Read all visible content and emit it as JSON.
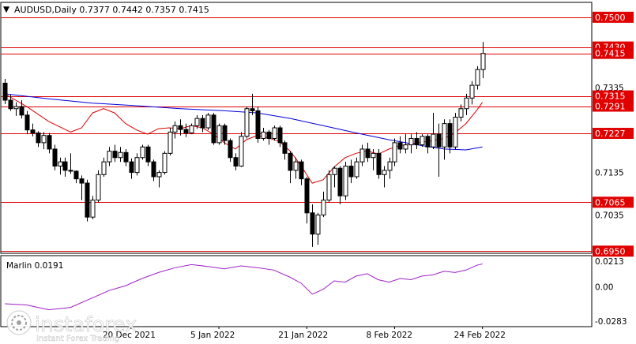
{
  "header": {
    "marker": "▼",
    "text": "AUDUSD,Daily  0.7377 0.7442 0.7357 0.7415"
  },
  "colors": {
    "level": "#e00000",
    "bull": "#ffffff",
    "bear": "#000000",
    "ma_slow": "#0000dd",
    "ma_fast": "#dd0000",
    "oscillator": "#a020c8",
    "grid_border": "#000000"
  },
  "chart_data": {
    "type": "candlestick",
    "symbol": "AUDUSD",
    "timeframe": "Daily",
    "ohlc_last": {
      "open": 0.7377,
      "high": 0.7442,
      "low": 0.7357,
      "close": 0.7415
    },
    "price_axis_labels": [
      "0.7500",
      "0.7430",
      "0.7415",
      "0.7335",
      "0.7315",
      "0.7291",
      "0.7227",
      "0.7135",
      "0.7065",
      "0.7035",
      "0.6950"
    ],
    "levels": [
      0.75,
      0.743,
      0.7415,
      0.7315,
      0.7291,
      0.7227,
      0.7065,
      0.695
    ],
    "ylim": [
      0.6945,
      0.7535
    ],
    "x_tick_labels": [
      "20 Dec 2021",
      "5 Jan 2022",
      "21 Jan 2022",
      "8 Feb 2022",
      "24 Feb 2022"
    ],
    "x_tick_index": [
      23,
      39,
      55,
      71,
      87
    ],
    "candles": [
      [
        0.7345,
        0.7355,
        0.7296,
        0.7305
      ],
      [
        0.7305,
        0.7318,
        0.728,
        0.7285
      ],
      [
        0.7285,
        0.73,
        0.7268,
        0.729
      ],
      [
        0.729,
        0.7305,
        0.7262,
        0.727
      ],
      [
        0.727,
        0.728,
        0.7225,
        0.7235
      ],
      [
        0.7235,
        0.725,
        0.722,
        0.7228
      ],
      [
        0.7228,
        0.7232,
        0.7195,
        0.7205
      ],
      [
        0.7205,
        0.723,
        0.719,
        0.7222
      ],
      [
        0.7222,
        0.7228,
        0.718,
        0.719
      ],
      [
        0.719,
        0.72,
        0.714,
        0.715
      ],
      [
        0.715,
        0.717,
        0.713,
        0.716
      ],
      [
        0.716,
        0.717,
        0.7125,
        0.714
      ],
      [
        0.714,
        0.718,
        0.7132,
        0.7138
      ],
      [
        0.7138,
        0.714,
        0.711,
        0.712
      ],
      [
        0.712,
        0.7128,
        0.707,
        0.711
      ],
      [
        0.711,
        0.7118,
        0.702,
        0.703
      ],
      [
        0.703,
        0.708,
        0.7025,
        0.707
      ],
      [
        0.707,
        0.714,
        0.7065,
        0.713
      ],
      [
        0.713,
        0.717,
        0.7125,
        0.716
      ],
      [
        0.716,
        0.7195,
        0.715,
        0.7185
      ],
      [
        0.7185,
        0.72,
        0.716,
        0.717
      ],
      [
        0.717,
        0.7195,
        0.716,
        0.7182
      ],
      [
        0.7182,
        0.719,
        0.715,
        0.716
      ],
      [
        0.716,
        0.7168,
        0.712,
        0.7135
      ],
      [
        0.7135,
        0.718,
        0.7128,
        0.717
      ],
      [
        0.717,
        0.72,
        0.7165,
        0.7195
      ],
      [
        0.7195,
        0.72,
        0.715,
        0.716
      ],
      [
        0.716,
        0.7165,
        0.7115,
        0.7125
      ],
      [
        0.7125,
        0.714,
        0.71,
        0.7135
      ],
      [
        0.7135,
        0.7185,
        0.713,
        0.718
      ],
      [
        0.718,
        0.724,
        0.7175,
        0.723
      ],
      [
        0.723,
        0.7255,
        0.7215,
        0.7245
      ],
      [
        0.7245,
        0.726,
        0.7222,
        0.7236
      ],
      [
        0.7236,
        0.725,
        0.7218,
        0.7228
      ],
      [
        0.7228,
        0.725,
        0.7225,
        0.7245
      ],
      [
        0.7245,
        0.727,
        0.7238,
        0.7262
      ],
      [
        0.7262,
        0.727,
        0.723,
        0.724
      ],
      [
        0.724,
        0.7275,
        0.7235,
        0.727
      ],
      [
        0.727,
        0.7275,
        0.72,
        0.7205
      ],
      [
        0.7205,
        0.725,
        0.72,
        0.7245
      ],
      [
        0.7245,
        0.725,
        0.72,
        0.721
      ],
      [
        0.721,
        0.7215,
        0.716,
        0.717
      ],
      [
        0.717,
        0.718,
        0.714,
        0.715
      ],
      [
        0.715,
        0.723,
        0.7148,
        0.722
      ],
      [
        0.722,
        0.729,
        0.7215,
        0.7285
      ],
      [
        0.7285,
        0.732,
        0.727,
        0.728
      ],
      [
        0.728,
        0.729,
        0.7205,
        0.7215
      ],
      [
        0.7215,
        0.724,
        0.721,
        0.723
      ],
      [
        0.723,
        0.7235,
        0.72,
        0.7215
      ],
      [
        0.7215,
        0.7245,
        0.721,
        0.724
      ],
      [
        0.724,
        0.7245,
        0.7195,
        0.7205
      ],
      [
        0.7205,
        0.721,
        0.7165,
        0.718
      ],
      [
        0.718,
        0.7185,
        0.711,
        0.714
      ],
      [
        0.714,
        0.717,
        0.712,
        0.716
      ],
      [
        0.716,
        0.7165,
        0.7105,
        0.712
      ],
      [
        0.712,
        0.7125,
        0.7015,
        0.704
      ],
      [
        0.704,
        0.706,
        0.696,
        0.699
      ],
      [
        0.699,
        0.704,
        0.6965,
        0.7035
      ],
      [
        0.7035,
        0.709,
        0.703,
        0.707
      ],
      [
        0.707,
        0.714,
        0.7065,
        0.713
      ],
      [
        0.713,
        0.715,
        0.71,
        0.7145
      ],
      [
        0.7145,
        0.715,
        0.706,
        0.708
      ],
      [
        0.708,
        0.716,
        0.707,
        0.715
      ],
      [
        0.715,
        0.7165,
        0.711,
        0.7125
      ],
      [
        0.7125,
        0.717,
        0.712,
        0.716
      ],
      [
        0.716,
        0.72,
        0.715,
        0.719
      ],
      [
        0.719,
        0.7205,
        0.716,
        0.717
      ],
      [
        0.717,
        0.719,
        0.714,
        0.718
      ],
      [
        0.718,
        0.719,
        0.712,
        0.713
      ],
      [
        0.713,
        0.715,
        0.71,
        0.714
      ],
      [
        0.714,
        0.717,
        0.712,
        0.716
      ],
      [
        0.716,
        0.7215,
        0.715,
        0.7205
      ],
      [
        0.7205,
        0.722,
        0.718,
        0.719
      ],
      [
        0.719,
        0.7225,
        0.718,
        0.72
      ],
      [
        0.72,
        0.7225,
        0.718,
        0.7215
      ],
      [
        0.7215,
        0.723,
        0.719,
        0.72
      ],
      [
        0.72,
        0.7225,
        0.7195,
        0.722
      ],
      [
        0.722,
        0.7225,
        0.718,
        0.7195
      ],
      [
        0.7195,
        0.7275,
        0.719,
        0.7225
      ],
      [
        0.7225,
        0.725,
        0.7125,
        0.7195
      ],
      [
        0.7195,
        0.726,
        0.7165,
        0.725
      ],
      [
        0.725,
        0.726,
        0.718,
        0.7195
      ],
      [
        0.7195,
        0.7275,
        0.719,
        0.7265
      ],
      [
        0.7265,
        0.7295,
        0.7255,
        0.7285
      ],
      [
        0.7285,
        0.732,
        0.727,
        0.731
      ],
      [
        0.731,
        0.735,
        0.7295,
        0.734
      ],
      [
        0.734,
        0.7385,
        0.733,
        0.7377
      ],
      [
        0.7377,
        0.7442,
        0.7357,
        0.7415
      ]
    ],
    "ma_slow": [
      [
        0,
        0.732
      ],
      [
        8,
        0.7308
      ],
      [
        16,
        0.7298
      ],
      [
        24,
        0.7292
      ],
      [
        32,
        0.7285
      ],
      [
        40,
        0.728
      ],
      [
        46,
        0.7275
      ],
      [
        52,
        0.7262
      ],
      [
        58,
        0.7245
      ],
      [
        64,
        0.7228
      ],
      [
        70,
        0.7212
      ],
      [
        76,
        0.7198
      ],
      [
        80,
        0.719
      ],
      [
        84,
        0.7188
      ],
      [
        87,
        0.7195
      ]
    ],
    "ma_fast": [
      [
        0,
        0.732
      ],
      [
        4,
        0.729
      ],
      [
        8,
        0.7255
      ],
      [
        12,
        0.723
      ],
      [
        14,
        0.724
      ],
      [
        16,
        0.7275
      ],
      [
        18,
        0.7285
      ],
      [
        20,
        0.7275
      ],
      [
        22,
        0.725
      ],
      [
        24,
        0.7235
      ],
      [
        26,
        0.7225
      ],
      [
        28,
        0.7238
      ],
      [
        30,
        0.724
      ],
      [
        32,
        0.7238
      ],
      [
        34,
        0.7245
      ],
      [
        36,
        0.724
      ],
      [
        38,
        0.7225
      ],
      [
        40,
        0.7205
      ],
      [
        42,
        0.719
      ],
      [
        44,
        0.7212
      ],
      [
        46,
        0.7222
      ],
      [
        48,
        0.7216
      ],
      [
        50,
        0.7208
      ],
      [
        52,
        0.7185
      ],
      [
        54,
        0.715
      ],
      [
        56,
        0.711
      ],
      [
        58,
        0.7118
      ],
      [
        60,
        0.7148
      ],
      [
        62,
        0.717
      ],
      [
        64,
        0.718
      ],
      [
        66,
        0.7186
      ],
      [
        68,
        0.7178
      ],
      [
        70,
        0.719
      ],
      [
        72,
        0.7198
      ],
      [
        74,
        0.7202
      ],
      [
        76,
        0.7206
      ],
      [
        78,
        0.721
      ],
      [
        80,
        0.7215
      ],
      [
        82,
        0.7228
      ],
      [
        84,
        0.725
      ],
      [
        86,
        0.7282
      ],
      [
        87,
        0.73
      ]
    ],
    "oscillator": {
      "name": "Marlin",
      "label": "Marlin 0.0191",
      "axis_labels": [
        "0.0213",
        "0.00",
        "-0.0283"
      ],
      "ylim": [
        -0.033,
        0.026
      ],
      "values": [
        [
          0,
          -0.014
        ],
        [
          4,
          -0.015
        ],
        [
          8,
          -0.019
        ],
        [
          12,
          -0.017
        ],
        [
          16,
          -0.009
        ],
        [
          19,
          -0.003
        ],
        [
          22,
          0.001
        ],
        [
          25,
          0.007
        ],
        [
          28,
          0.012
        ],
        [
          31,
          0.016
        ],
        [
          34,
          0.0185
        ],
        [
          37,
          0.017
        ],
        [
          40,
          0.015
        ],
        [
          43,
          0.0175
        ],
        [
          46,
          0.016
        ],
        [
          49,
          0.014
        ],
        [
          52,
          0.008
        ],
        [
          54,
          0.003
        ],
        [
          56,
          -0.006
        ],
        [
          58,
          -0.002
        ],
        [
          60,
          0.005
        ],
        [
          62,
          0.004
        ],
        [
          64,
          0.009
        ],
        [
          66,
          0.011
        ],
        [
          68,
          0.006
        ],
        [
          70,
          0.004
        ],
        [
          72,
          0.007
        ],
        [
          74,
          0.006
        ],
        [
          76,
          0.009
        ],
        [
          78,
          0.01
        ],
        [
          80,
          0.013
        ],
        [
          82,
          0.012
        ],
        [
          84,
          0.014
        ],
        [
          86,
          0.018
        ],
        [
          87,
          0.0191
        ]
      ]
    }
  },
  "watermark": {
    "brand": "instaforex",
    "tagline": "Instant Forex Trading"
  }
}
